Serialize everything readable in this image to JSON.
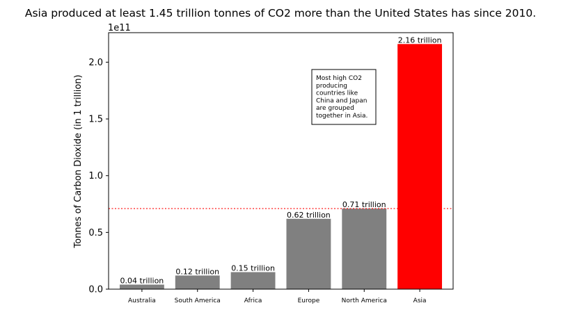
{
  "chart_data": {
    "type": "bar",
    "title": "Asia produced at least 1.45 trillion tonnes of CO2 more than the United States has since 2010.",
    "ylabel": "Tonnes of Carbon Dioxide (in 1 trillion)",
    "xlabel": "",
    "scale_label": "1e11",
    "categories": [
      "Australia",
      "South America",
      "Africa",
      "Europe",
      "North America",
      "Asia"
    ],
    "values": [
      4000000000.0,
      12000000000.0,
      15000000000.0,
      62000000000.0,
      71000000000.0,
      216000000000.0
    ],
    "data_labels": [
      "0.04 trillion",
      "0.12 trillion",
      "0.15 trillion",
      "0.62 trillion",
      "0.71 trillion",
      "2.16 trillion"
    ],
    "bar_colors": [
      "#808080",
      "#808080",
      "#808080",
      "#808080",
      "#808080",
      "#ff0000"
    ],
    "ylim": [
      0,
      226000000000.0
    ],
    "yticks": [
      0,
      50000000000.0,
      100000000000.0,
      150000000000.0,
      200000000000.0
    ],
    "ytick_labels": [
      "0.0",
      "0.5",
      "1.0",
      "1.5",
      "2.0"
    ],
    "reference_line": {
      "value": 71000000000.0,
      "color": "#ff0000",
      "style": "dotted"
    },
    "annotation": {
      "lines": [
        "Most high CO2",
        "producing",
        "countries like",
        "China and Japan",
        "are grouped",
        "together in Asia."
      ]
    },
    "grid": false,
    "legend": "none"
  }
}
